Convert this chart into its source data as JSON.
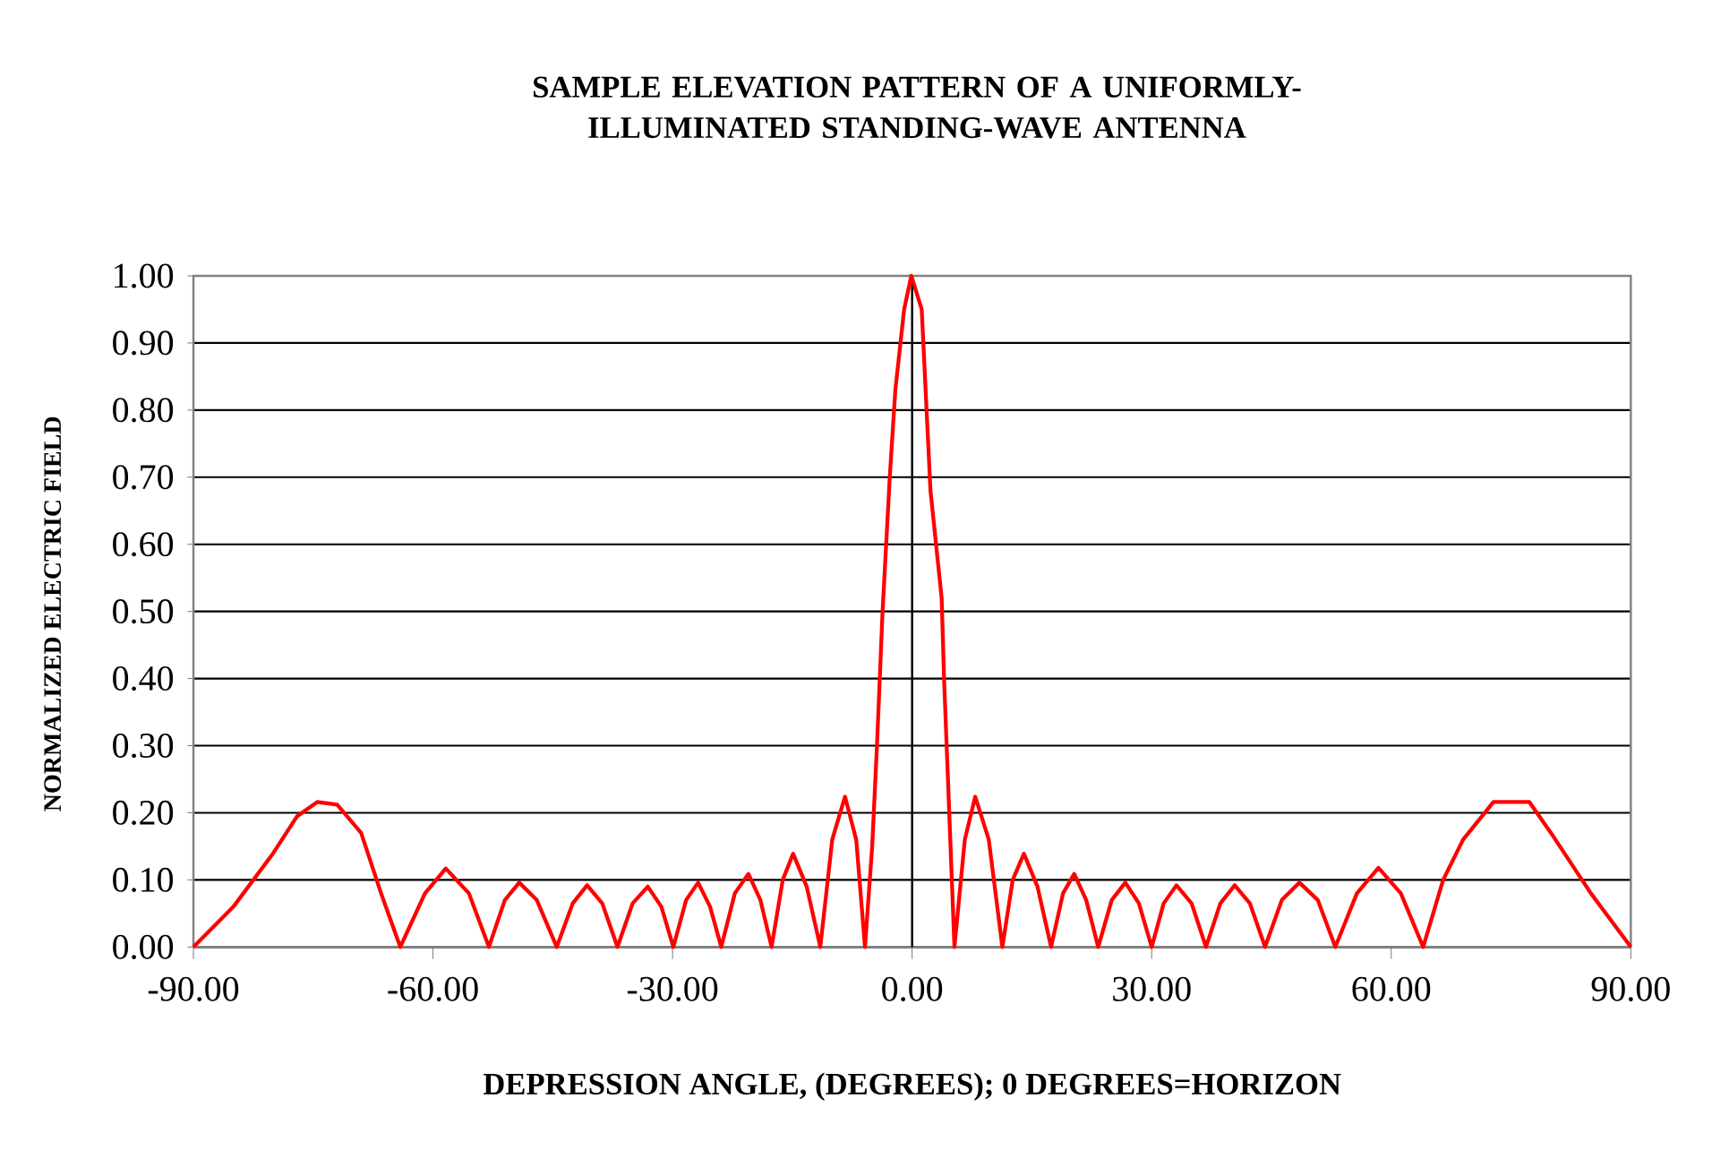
{
  "chart_data": {
    "type": "line",
    "title": "SAMPLE ELEVATION PATTERN OF A UNIFORMLY-ILLUMINATED STANDING-WAVE ANTENNA",
    "xlabel": "DEPRESSION ANGLE, (DEGREES); 0 DEGREES=HORIZON",
    "ylabel": "NORMALIZED ELECTRIC FIELD",
    "x": [
      -90,
      -85,
      -80,
      -77,
      -74.5,
      -72,
      -69,
      -66.5,
      -64.1,
      -61,
      -58.4,
      -55.5,
      -53.0,
      -51,
      -49.2,
      -47,
      -44.5,
      -42.5,
      -40.7,
      -38.8,
      -36.9,
      -35,
      -33.1,
      -31.4,
      -29.9,
      -28.3,
      -26.8,
      -25.3,
      -23.9,
      -22.2,
      -20.5,
      -19,
      -17.6,
      -16.2,
      -14.9,
      -13.2,
      -11.5,
      -10,
      -8.4,
      -7,
      -5.9,
      -5,
      -4.4,
      -3.7,
      -2.8,
      -2.1,
      -1.0,
      -0.1,
      1.2,
      2.3,
      3.7,
      4.0,
      5.3,
      6.6,
      7.9,
      9.6,
      11.3,
      12.6,
      14.0,
      15.7,
      17.4,
      18.9,
      20.3,
      21.8,
      23.3,
      25,
      26.7,
      28.4,
      30.0,
      31.5,
      33.1,
      35,
      36.8,
      38.6,
      40.4,
      42.3,
      44.2,
      46.3,
      48.5,
      50.8,
      53.0,
      55.7,
      58.4,
      61.2,
      64.0,
      66.5,
      69,
      72.8,
      77.3,
      80,
      85,
      90
    ],
    "series": [
      {
        "color": "#ff0000",
        "values": [
          0.0,
          0.06,
          0.14,
          0.195,
          0.216,
          0.212,
          0.17,
          0.08,
          0.0,
          0.08,
          0.117,
          0.08,
          0.0,
          0.07,
          0.096,
          0.07,
          0.0,
          0.065,
          0.092,
          0.065,
          0.0,
          0.065,
          0.09,
          0.06,
          0.0,
          0.07,
          0.096,
          0.06,
          0.0,
          0.08,
          0.109,
          0.07,
          0.0,
          0.1,
          0.139,
          0.09,
          0.0,
          0.16,
          0.224,
          0.16,
          0.0,
          0.15,
          0.3,
          0.5,
          0.7,
          0.83,
          0.95,
          1.0,
          0.95,
          0.68,
          0.52,
          0.4,
          0.0,
          0.16,
          0.224,
          0.16,
          0.0,
          0.1,
          0.139,
          0.09,
          0.0,
          0.08,
          0.109,
          0.07,
          0.0,
          0.07,
          0.096,
          0.065,
          0.0,
          0.065,
          0.092,
          0.065,
          0.0,
          0.065,
          0.092,
          0.065,
          0.0,
          0.07,
          0.096,
          0.07,
          0.0,
          0.08,
          0.118,
          0.08,
          0.0,
          0.1,
          0.16,
          0.216,
          0.216,
          0.17,
          0.08,
          0.0
        ]
      }
    ],
    "xlim": [
      -90,
      90
    ],
    "ylim": [
      0,
      1
    ],
    "xticks": [
      {
        "value": -90,
        "label": "-90.00"
      },
      {
        "value": -60,
        "label": "-60.00"
      },
      {
        "value": -30,
        "label": "-30.00"
      },
      {
        "value": 0,
        "label": "0.00"
      },
      {
        "value": 30,
        "label": "30.00"
      },
      {
        "value": 60,
        "label": "60.00"
      },
      {
        "value": 90,
        "label": "90.00"
      }
    ],
    "yticks": [
      {
        "value": 0,
        "label": "0.00"
      },
      {
        "value": 0.1,
        "label": "0.10"
      },
      {
        "value": 0.2,
        "label": "0.20"
      },
      {
        "value": 0.3,
        "label": "0.30"
      },
      {
        "value": 0.4,
        "label": "0.40"
      },
      {
        "value": 0.5,
        "label": "0.50"
      },
      {
        "value": 0.6,
        "label": "0.60"
      },
      {
        "value": 0.7,
        "label": "0.70"
      },
      {
        "value": 0.8,
        "label": "0.80"
      },
      {
        "value": 0.9,
        "label": "0.90"
      },
      {
        "value": 1.0,
        "label": "1.00"
      }
    ],
    "ref_lines": [
      {
        "axis": "x",
        "value": 0,
        "color": "#000000"
      }
    ],
    "grid": "y",
    "marker": "none",
    "line_style": "solid"
  }
}
